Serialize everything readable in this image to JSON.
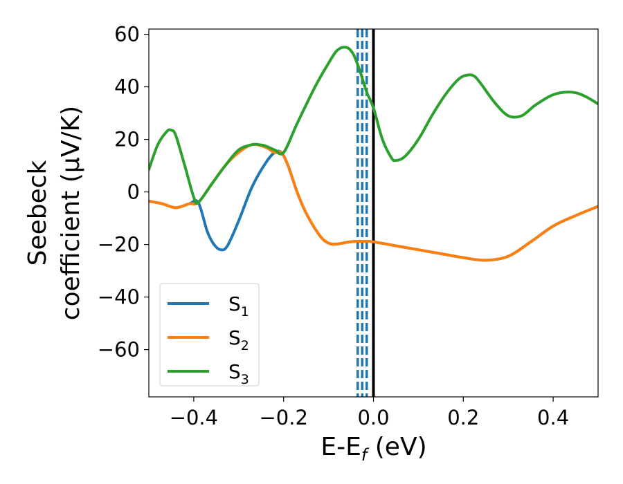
{
  "chart_data": {
    "type": "line",
    "title": "",
    "xlabel": {
      "main": "E-E",
      "sub": "f",
      "unit": " (eV)"
    },
    "ylabel": {
      "line1": "Seebeck",
      "line2": "coefficient  (μV/K)"
    },
    "xlim": [
      -0.5,
      0.5
    ],
    "ylim": [
      -78,
      62
    ],
    "xticks": [
      -0.4,
      -0.2,
      0.0,
      0.2,
      0.4
    ],
    "xtick_labels": [
      "−0.4",
      "−0.2",
      "0.0",
      "0.2",
      "0.4"
    ],
    "yticks": [
      60,
      40,
      20,
      0,
      -20,
      -40,
      -60
    ],
    "ytick_labels": [
      "60",
      "40",
      "20",
      "0",
      "−20",
      "−40",
      "−60"
    ],
    "grid": false,
    "legend": "lower-left",
    "series": [
      {
        "name": "S",
        "sub": "1",
        "color": "#1f77b4",
        "x": [
          -0.5,
          -0.47,
          -0.44,
          -0.41,
          -0.39,
          -0.37,
          -0.355,
          -0.34,
          -0.325,
          -0.3,
          -0.27,
          -0.24,
          -0.22,
          -0.205,
          -0.19,
          -0.17,
          -0.15,
          -0.12,
          -0.1,
          -0.08,
          -0.06,
          -0.04,
          -0.02,
          0.0,
          0.05,
          0.1,
          0.15,
          0.2,
          0.25,
          0.3,
          0.35,
          0.4,
          0.45,
          0.5
        ],
        "y": [
          -3.5,
          -4.5,
          -6,
          -4.5,
          -4,
          -15,
          -20,
          -22,
          -20.5,
          -11,
          2,
          11,
          15,
          15,
          10,
          0,
          -8,
          -16.5,
          -19.5,
          -19.8,
          -19.2,
          -18.8,
          -18.8,
          -19,
          -20.5,
          -22,
          -23.5,
          -25,
          -26,
          -24.5,
          -19,
          -13,
          -9,
          -5.5
        ]
      },
      {
        "name": "S",
        "sub": "2",
        "color": "#ff7f0e",
        "x": [
          -0.5,
          -0.47,
          -0.44,
          -0.41,
          -0.39,
          -0.36,
          -0.33,
          -0.3,
          -0.27,
          -0.24,
          -0.22,
          -0.205,
          -0.19,
          -0.17,
          -0.15,
          -0.12,
          -0.1,
          -0.08,
          -0.06,
          -0.04,
          -0.02,
          0.0,
          0.05,
          0.1,
          0.15,
          0.2,
          0.25,
          0.3,
          0.35,
          0.4,
          0.45,
          0.5
        ],
        "y": [
          -3.5,
          -4.5,
          -6,
          -4.5,
          -4,
          3,
          10,
          15,
          18,
          17,
          15,
          15,
          10,
          0,
          -8,
          -16.5,
          -19.5,
          -19.8,
          -19.2,
          -18.8,
          -18.8,
          -19,
          -20.5,
          -22,
          -23.5,
          -25,
          -26,
          -24.5,
          -19,
          -13,
          -9,
          -5.5
        ]
      },
      {
        "name": "S",
        "sub": "3",
        "color": "#2ca02c",
        "x": [
          -0.5,
          -0.48,
          -0.46,
          -0.45,
          -0.44,
          -0.42,
          -0.4,
          -0.39,
          -0.36,
          -0.33,
          -0.3,
          -0.27,
          -0.255,
          -0.24,
          -0.22,
          -0.2,
          -0.17,
          -0.13,
          -0.1,
          -0.08,
          -0.06,
          -0.045,
          -0.03,
          -0.015,
          0.0,
          0.02,
          0.04,
          0.05,
          0.07,
          0.1,
          0.13,
          0.16,
          0.19,
          0.21,
          0.225,
          0.24,
          0.27,
          0.3,
          0.33,
          0.36,
          0.4,
          0.44,
          0.47,
          0.5
        ],
        "y": [
          8.5,
          18,
          23,
          23.5,
          21.5,
          10,
          -2,
          -4,
          3,
          10,
          16,
          18,
          18,
          17.5,
          16,
          15,
          26,
          40,
          49,
          54,
          55,
          52.5,
          46,
          38,
          32,
          20,
          13,
          12,
          13.5,
          20,
          29,
          37,
          43,
          44.5,
          44,
          41,
          34,
          29,
          29,
          33,
          37,
          38,
          36.5,
          33.5
        ]
      }
    ],
    "vlines": [
      {
        "x": -0.035,
        "style": "dashed",
        "color": "#1f77b4"
      },
      {
        "x": -0.025,
        "style": "dashed",
        "color": "#1f77b4"
      },
      {
        "x": -0.015,
        "style": "dashed",
        "color": "#1f77b4"
      },
      {
        "x": 0.0,
        "style": "solid",
        "color": "#000000"
      }
    ]
  }
}
